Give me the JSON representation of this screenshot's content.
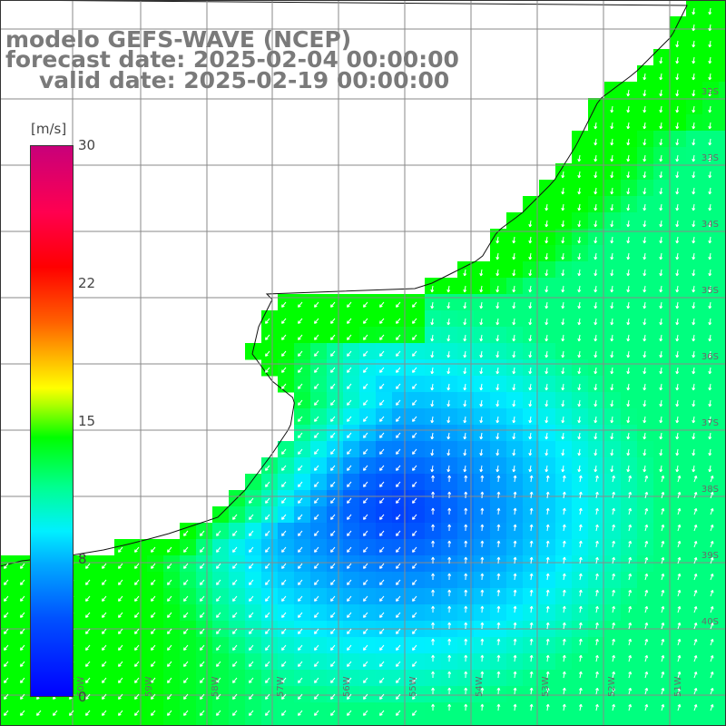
{
  "title": {
    "line1": "modelo GEFS-WAVE (NCEP)",
    "line2": "forecast date: 2025-02-04 00:00:00",
    "line3": "valid date: 2025-02-19 00:00:00"
  },
  "colorbar": {
    "unit": "[m/s]",
    "min": 0,
    "max": 30,
    "ticks": [
      "30",
      "22",
      "15",
      "8",
      "0"
    ],
    "tick_values": [
      30,
      22,
      15,
      8,
      0
    ],
    "colors": [
      "#0000ff",
      "#00aaff",
      "#00f0ff",
      "#00ff00",
      "#ffff00",
      "#ff6000",
      "#ff0000",
      "#c8007a"
    ]
  },
  "map": {
    "variable": "wind speed",
    "lat_labels": [
      "32S",
      "33S",
      "34S",
      "35S",
      "36S",
      "37S",
      "38S",
      "39S",
      "40S"
    ],
    "lon_labels": [
      "60W",
      "59W",
      "58W",
      "57W",
      "56W",
      "55W",
      "54W",
      "53W",
      "52W",
      "51W"
    ],
    "land_color": "#ffffff",
    "grid_color": "#8a8a8a",
    "arrow_color": "#ffffff"
  }
}
